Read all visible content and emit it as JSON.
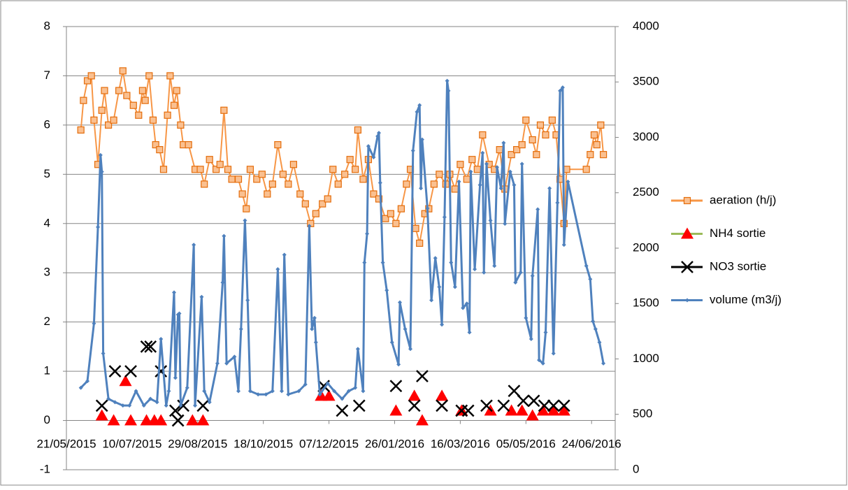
{
  "chart_data": {
    "type": "line",
    "xlim": [
      "2015-05-21",
      "2016-07-12"
    ],
    "xticks": [
      {
        "value": "2015-05-21",
        "label": "21/05/2015"
      },
      {
        "value": "2015-07-10",
        "label": "10/07/2015"
      },
      {
        "value": "2015-08-29",
        "label": "29/08/2015"
      },
      {
        "value": "2015-10-18",
        "label": "18/10/2015"
      },
      {
        "value": "2015-12-07",
        "label": "07/12/2015"
      },
      {
        "value": "2016-01-26",
        "label": "26/01/2016"
      },
      {
        "value": "2016-03-16",
        "label": "16/03/2016"
      },
      {
        "value": "2016-05-05",
        "label": "05/05/2016"
      },
      {
        "value": "2016-06-24",
        "label": "24/06/2016"
      }
    ],
    "ylim": [
      -1,
      8
    ],
    "yticks": [
      -1,
      0,
      1,
      2,
      3,
      4,
      5,
      6,
      7,
      8
    ],
    "y2lim": [
      0,
      4000
    ],
    "y2ticks": [
      0,
      500,
      1000,
      1500,
      2000,
      2500,
      3000,
      3500,
      4000
    ],
    "grid": true,
    "legend": "right",
    "series": [
      {
        "name": "aeration (h/j)",
        "color": "#f79646",
        "marker": "square",
        "line": true,
        "axis": "y",
        "x": [
          "2015-06-01",
          "2015-06-03",
          "2015-06-06",
          "2015-06-09",
          "2015-06-11",
          "2015-06-14",
          "2015-06-17",
          "2015-06-19",
          "2015-06-22",
          "2015-06-26",
          "2015-06-30",
          "2015-07-03",
          "2015-07-06",
          "2015-07-11",
          "2015-07-15",
          "2015-07-18",
          "2015-07-20",
          "2015-07-23",
          "2015-07-26",
          "2015-07-28",
          "2015-07-31",
          "2015-08-03",
          "2015-08-06",
          "2015-08-08",
          "2015-08-11",
          "2015-08-13",
          "2015-08-16",
          "2015-08-18",
          "2015-08-22",
          "2015-08-27",
          "2015-08-31",
          "2015-09-03",
          "2015-09-07",
          "2015-09-12",
          "2015-09-15",
          "2015-09-18",
          "2015-09-21",
          "2015-09-24",
          "2015-09-29",
          "2015-10-02",
          "2015-10-05",
          "2015-10-08",
          "2015-10-13",
          "2015-10-17",
          "2015-10-21",
          "2015-10-25",
          "2015-10-29",
          "2015-11-02",
          "2015-11-06",
          "2015-11-10",
          "2015-11-15",
          "2015-11-19",
          "2015-11-23",
          "2015-11-27",
          "2015-12-02",
          "2015-12-06",
          "2015-12-10",
          "2015-12-14",
          "2015-12-19",
          "2015-12-23",
          "2015-12-27",
          "2015-12-29",
          "2016-01-02",
          "2016-01-06",
          "2016-01-10",
          "2016-01-14",
          "2016-01-19",
          "2016-01-23",
          "2016-01-27",
          "2016-01-31",
          "2016-02-04",
          "2016-02-07",
          "2016-02-11",
          "2016-02-14",
          "2016-02-18",
          "2016-02-21",
          "2016-02-25",
          "2016-02-29",
          "2016-03-05",
          "2016-03-08",
          "2016-03-12",
          "2016-03-16",
          "2016-03-21",
          "2016-03-25",
          "2016-03-29",
          "2016-04-02",
          "2016-04-07",
          "2016-04-11",
          "2016-04-15",
          "2016-04-19",
          "2016-04-24",
          "2016-04-28",
          "2016-05-02",
          "2016-05-05",
          "2016-05-10",
          "2016-05-13",
          "2016-05-16",
          "2016-05-20",
          "2016-05-25",
          "2016-05-28",
          "2016-05-31",
          "2016-06-03",
          "2016-06-05",
          "2016-06-20",
          "2016-06-23",
          "2016-06-26",
          "2016-06-28",
          "2016-07-01",
          "2016-07-03"
        ],
        "values": [
          5.9,
          6.5,
          6.9,
          7.0,
          6.1,
          5.2,
          6.3,
          6.7,
          6.0,
          6.1,
          6.7,
          7.1,
          6.6,
          6.4,
          6.2,
          6.7,
          6.5,
          7.0,
          6.1,
          5.6,
          5.5,
          5.1,
          6.2,
          7.0,
          6.4,
          6.7,
          6.0,
          5.6,
          5.6,
          5.1,
          5.1,
          4.8,
          5.3,
          5.1,
          5.2,
          6.3,
          5.1,
          4.9,
          4.9,
          4.6,
          4.3,
          5.1,
          4.9,
          5.0,
          4.6,
          4.8,
          5.6,
          5.0,
          4.8,
          5.2,
          4.6,
          4.4,
          4.0,
          4.2,
          4.4,
          4.5,
          5.1,
          4.8,
          5.0,
          5.3,
          5.1,
          5.9,
          4.9,
          5.3,
          4.6,
          4.5,
          4.1,
          4.2,
          4.0,
          4.3,
          4.8,
          5.1,
          3.9,
          3.6,
          4.2,
          4.3,
          4.8,
          5.0,
          4.8,
          5.0,
          4.7,
          5.2,
          4.9,
          5.3,
          5.1,
          5.8,
          5.2,
          5.1,
          5.5,
          4.7,
          5.4,
          5.5,
          5.6,
          6.1,
          5.7,
          5.4,
          6.0,
          5.8,
          6.1,
          5.8,
          4.9,
          4.0,
          5.1,
          5.1,
          5.4,
          5.8,
          5.6,
          6.0,
          5.4
        ]
      },
      {
        "name": "NH4 sortie",
        "color": "#ff0000",
        "line_color": "#9bbb59",
        "marker": "triangle",
        "line": false,
        "axis": "y",
        "x": [
          "2015-06-17",
          "2015-06-26",
          "2015-07-05",
          "2015-07-09",
          "2015-07-21",
          "2015-07-27",
          "2015-08-01",
          "2015-08-25",
          "2015-09-02",
          "2015-12-01",
          "2015-12-07",
          "2016-01-27",
          "2016-02-10",
          "2016-02-16",
          "2016-03-02",
          "2016-03-17",
          "2016-04-08",
          "2016-04-24",
          "2016-05-02",
          "2016-05-10",
          "2016-05-18",
          "2016-05-26",
          "2016-06-03"
        ],
        "values": [
          0.1,
          0,
          0.8,
          0,
          0,
          0,
          0,
          0,
          0,
          0.5,
          0.5,
          0.2,
          0.5,
          0,
          0.5,
          0.2,
          0.2,
          0.2,
          0.2,
          0.1,
          0.2,
          0.2,
          0.2
        ]
      },
      {
        "name": "NO3 sortie",
        "color": "#000000",
        "marker": "cross",
        "line": false,
        "axis": "y",
        "x": [
          "2015-06-17",
          "2015-06-27",
          "2015-07-09",
          "2015-07-21",
          "2015-07-24",
          "2015-08-01",
          "2015-08-12",
          "2015-08-14",
          "2015-08-18",
          "2015-09-02",
          "2015-12-03",
          "2015-12-17",
          "2015-12-30",
          "2016-01-27",
          "2016-02-10",
          "2016-02-16",
          "2016-03-02",
          "2016-03-17",
          "2016-03-22",
          "2016-04-05",
          "2016-04-18",
          "2016-04-26",
          "2016-05-03",
          "2016-05-11",
          "2016-05-19",
          "2016-05-26",
          "2016-06-03"
        ],
        "values": [
          0.3,
          1.0,
          1.0,
          1.5,
          1.5,
          1.0,
          0.2,
          0,
          0.3,
          0.3,
          0.7,
          0.2,
          0.3,
          0.7,
          0.3,
          0.9,
          0.3,
          0.2,
          0.2,
          0.3,
          0.3,
          0.6,
          0.4,
          0.4,
          0.3,
          0.3,
          0.3
        ]
      },
      {
        "name": "volume (m3/j)",
        "color": "#4f81bd",
        "marker": "diamond",
        "line": true,
        "axis": "y2",
        "x": [
          "2015-06-01",
          "2015-06-06",
          "2015-06-11",
          "2015-06-14",
          "2015-06-16",
          "2015-06-17",
          "2015-06-18",
          "2015-06-22",
          "2015-06-27",
          "2015-07-03",
          "2015-07-08",
          "2015-07-13",
          "2015-07-19",
          "2015-07-24",
          "2015-07-29",
          "2015-08-01",
          "2015-08-05",
          "2015-08-07",
          "2015-08-11",
          "2015-08-12",
          "2015-08-14",
          "2015-08-15",
          "2015-08-16",
          "2015-08-21",
          "2015-08-26",
          "2015-08-27",
          "2015-09-01",
          "2015-09-03",
          "2015-09-07",
          "2015-09-13",
          "2015-09-17",
          "2015-09-18",
          "2015-09-20",
          "2015-09-26",
          "2015-09-29",
          "2015-10-01",
          "2015-10-04",
          "2015-10-06",
          "2015-10-08",
          "2015-10-14",
          "2015-10-20",
          "2015-10-25",
          "2015-10-29",
          "2015-11-01",
          "2015-11-03",
          "2015-11-06",
          "2015-11-14",
          "2015-11-19",
          "2015-11-22",
          "2015-11-24",
          "2015-11-26",
          "2015-11-27",
          "2015-11-30",
          "2015-12-06",
          "2015-12-11",
          "2015-12-17",
          "2015-12-22",
          "2015-12-27",
          "2015-12-29",
          "2016-01-02",
          "2016-01-03",
          "2016-01-05",
          "2016-01-06",
          "2016-01-10",
          "2016-01-13",
          "2016-01-14",
          "2016-01-15",
          "2016-01-17",
          "2016-01-20",
          "2016-01-24",
          "2016-01-29",
          "2016-01-30",
          "2016-02-03",
          "2016-02-07",
          "2016-02-09",
          "2016-02-12",
          "2016-02-14",
          "2016-02-15",
          "2016-02-16",
          "2016-02-20",
          "2016-02-23",
          "2016-02-26",
          "2016-02-29",
          "2016-03-02",
          "2016-03-04",
          "2016-03-06",
          "2016-03-07",
          "2016-03-09",
          "2016-03-12",
          "2016-03-15",
          "2016-03-18",
          "2016-03-21",
          "2016-03-23",
          "2016-03-24",
          "2016-03-27",
          "2016-03-31",
          "2016-04-02",
          "2016-04-03",
          "2016-04-05",
          "2016-04-08",
          "2016-04-11",
          "2016-04-13",
          "2016-04-16",
          "2016-04-18",
          "2016-04-19",
          "2016-04-23",
          "2016-04-26",
          "2016-04-27",
          "2016-05-01",
          "2016-05-02",
          "2016-05-05",
          "2016-05-09",
          "2016-05-10",
          "2016-05-14",
          "2016-05-15",
          "2016-05-18",
          "2016-05-20",
          "2016-05-23",
          "2016-05-26",
          "2016-05-29",
          "2016-05-31",
          "2016-06-02",
          "2016-06-03",
          "2016-06-06",
          "2016-06-20",
          "2016-06-23",
          "2016-06-25",
          "2016-06-27",
          "2016-06-30",
          "2016-07-03"
        ],
        "values": [
          740,
          800,
          1320,
          2190,
          2840,
          2690,
          1050,
          640,
          610,
          580,
          580,
          710,
          580,
          640,
          610,
          1180,
          580,
          710,
          1600,
          830,
          1400,
          1410,
          580,
          740,
          2030,
          580,
          1560,
          710,
          610,
          960,
          1690,
          2110,
          960,
          1020,
          710,
          1270,
          2250,
          1530,
          710,
          680,
          680,
          710,
          1810,
          710,
          1940,
          680,
          710,
          770,
          2200,
          1270,
          1370,
          1150,
          680,
          780,
          710,
          640,
          710,
          740,
          1090,
          710,
          1870,
          2130,
          2920,
          2820,
          3010,
          3040,
          2590,
          1870,
          1620,
          1150,
          950,
          1510,
          1270,
          1090,
          2880,
          3230,
          3290,
          2540,
          2980,
          2360,
          1530,
          1910,
          1650,
          1310,
          2280,
          3510,
          3420,
          1870,
          1650,
          2600,
          1460,
          1500,
          1240,
          2690,
          1810,
          2570,
          2860,
          1780,
          2760,
          2250,
          1840,
          2730,
          2540,
          2950,
          2220,
          2690,
          2570,
          1690,
          1780,
          2760,
          1370,
          1180,
          1750,
          2350,
          990,
          960,
          1240,
          2540,
          1050,
          2410,
          3420,
          3450,
          2030,
          2600,
          1840,
          1720,
          1340,
          1270,
          1150,
          960
        ]
      }
    ]
  }
}
